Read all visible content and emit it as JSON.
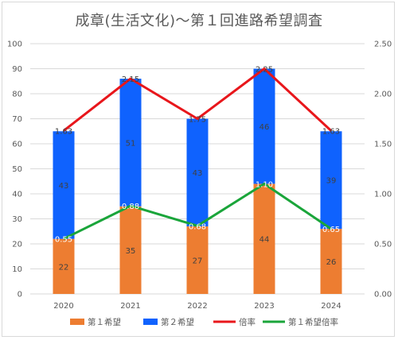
{
  "chart_data": {
    "type": "bar",
    "title": "成章(生活文化)～第１回進路希望調査",
    "categories": [
      "2020",
      "2021",
      "2022",
      "2023",
      "2024"
    ],
    "series": [
      {
        "name": "第１希望",
        "type": "bar",
        "stack": "main",
        "axis": "left",
        "color": "#ED7D31",
        "values": [
          22,
          35,
          27,
          44,
          26
        ]
      },
      {
        "name": "第２希望",
        "type": "bar",
        "stack": "main",
        "axis": "left",
        "color": "#0F62FE",
        "values": [
          43,
          51,
          43,
          46,
          39
        ]
      },
      {
        "name": "倍率",
        "type": "line",
        "axis": "right",
        "color": "#E8161B",
        "values": [
          1.63,
          2.15,
          1.75,
          2.25,
          1.63
        ],
        "labels": [
          "1.63",
          "2.15",
          "1.75",
          "2.25",
          "1.63"
        ]
      },
      {
        "name": "第１希望倍率",
        "type": "line",
        "axis": "right",
        "color": "#1AA53A",
        "values": [
          0.55,
          0.88,
          0.68,
          1.1,
          0.65
        ],
        "labels": [
          "0.55",
          "0.88",
          "0.68",
          "1.10",
          "0.65"
        ]
      }
    ],
    "ylim_left": [
      0,
      100
    ],
    "ylim_right": [
      0,
      2.5
    ],
    "left_ticks": [
      0,
      10,
      20,
      30,
      40,
      50,
      60,
      70,
      80,
      90,
      100
    ],
    "right_ticks": [
      "0.00",
      "0.50",
      "1.00",
      "1.50",
      "2.00",
      "2.50"
    ],
    "grid": true,
    "legend_position": "bottom"
  }
}
